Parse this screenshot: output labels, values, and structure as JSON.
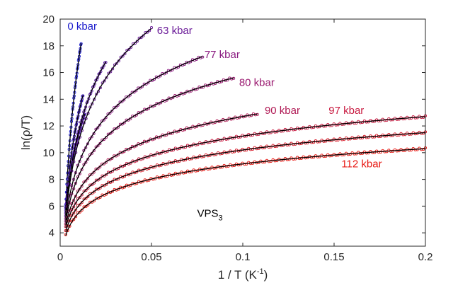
{
  "chart_data": {
    "type": "scatter",
    "title": "",
    "xlabel": "1 / T (K",
    "xlabel_sup": "-1",
    "xlabel_end": ")",
    "ylabel": "ln(ρ/T)",
    "xlim": [
      0,
      0.2
    ],
    "ylim": [
      3,
      20
    ],
    "xticks": [
      0,
      0.05,
      0.1,
      0.15,
      0.2
    ],
    "xtick_labels": [
      "0",
      "0.05",
      "0.1",
      "0.15",
      "0.2"
    ],
    "yticks": [
      4,
      6,
      8,
      10,
      12,
      14,
      16,
      18,
      20
    ],
    "ytick_labels": [
      "4",
      "6",
      "8",
      "10",
      "12",
      "14",
      "16",
      "18",
      "20"
    ],
    "annotation": {
      "text": "VPS",
      "sub": "3",
      "x": 0.075,
      "y": 5.2
    },
    "series": [
      {
        "name": "0 kbar",
        "color": "#1a1acc",
        "start": [
          0.003,
          6.0
        ],
        "end": [
          0.0115,
          18.2
        ],
        "label_pos": [
          0.004,
          19.2
        ]
      },
      {
        "name": "",
        "color": "#3a1ab8",
        "start": [
          0.003,
          5.8
        ],
        "end": [
          0.0125,
          14.3
        ]
      },
      {
        "name": "",
        "color": "#4a1aac",
        "start": [
          0.003,
          5.6
        ],
        "end": [
          0.0135,
          12.9
        ]
      },
      {
        "name": "",
        "color": "#5a1aa0",
        "start": [
          0.003,
          5.4
        ],
        "end": [
          0.025,
          16.8
        ]
      },
      {
        "name": "63 kbar",
        "color": "#6a1a98",
        "start": [
          0.003,
          5.2
        ],
        "end": [
          0.05,
          19.3
        ],
        "label_pos": [
          0.053,
          18.9
        ]
      },
      {
        "name": "77 kbar",
        "color": "#8a1a80",
        "start": [
          0.003,
          5.0
        ],
        "end": [
          0.078,
          17.2
        ],
        "label_pos": [
          0.079,
          17.1
        ]
      },
      {
        "name": "80 kbar",
        "color": "#9a1a70",
        "start": [
          0.003,
          4.8
        ],
        "end": [
          0.095,
          15.6
        ],
        "label_pos": [
          0.098,
          15.0
        ]
      },
      {
        "name": "90 kbar",
        "color": "#b01a55",
        "start": [
          0.003,
          4.6
        ],
        "end": [
          0.108,
          12.9
        ],
        "label_pos": [
          0.112,
          12.9
        ]
      },
      {
        "name": "97 kbar",
        "color": "#c81a40",
        "start": [
          0.003,
          4.4
        ],
        "end": [
          0.2,
          12.7
        ],
        "label_pos": [
          0.147,
          12.9
        ]
      },
      {
        "name": "",
        "color": "#d81a28",
        "start": [
          0.003,
          4.1
        ],
        "end": [
          0.2,
          11.5
        ]
      },
      {
        "name": "112 kbar",
        "color": "#e81a14",
        "start": [
          0.003,
          3.8
        ],
        "end": [
          0.2,
          10.3
        ],
        "label_pos": [
          0.154,
          8.9
        ]
      }
    ]
  }
}
